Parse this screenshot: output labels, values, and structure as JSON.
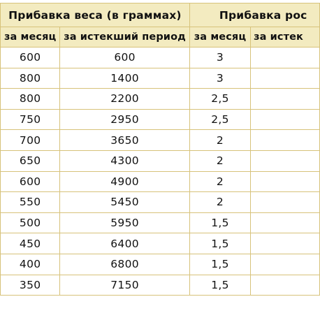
{
  "table": {
    "group_headers": [
      "Прибавка веса (в граммах)",
      "Прибавка рос"
    ],
    "sub_headers": [
      "за месяц",
      "за истекший период",
      "за месяц",
      "за истек"
    ],
    "rows": [
      [
        "600",
        "600",
        "3",
        ""
      ],
      [
        "800",
        "1400",
        "3",
        ""
      ],
      [
        "800",
        "2200",
        "2,5",
        ""
      ],
      [
        "750",
        "2950",
        "2,5",
        ""
      ],
      [
        "700",
        "3650",
        "2",
        ""
      ],
      [
        "650",
        "4300",
        "2",
        ""
      ],
      [
        "600",
        "4900",
        "2",
        ""
      ],
      [
        "550",
        "5450",
        "2",
        ""
      ],
      [
        "500",
        "5950",
        "1,5",
        ""
      ],
      [
        "450",
        "6400",
        "1,5",
        ""
      ],
      [
        "400",
        "6800",
        "1,5",
        ""
      ],
      [
        "350",
        "7150",
        "1,5",
        ""
      ]
    ]
  },
  "colors": {
    "header_background": "#f3ebc0",
    "border": "#d7c27a",
    "text": "#111111",
    "cell_background": "#ffffff"
  }
}
